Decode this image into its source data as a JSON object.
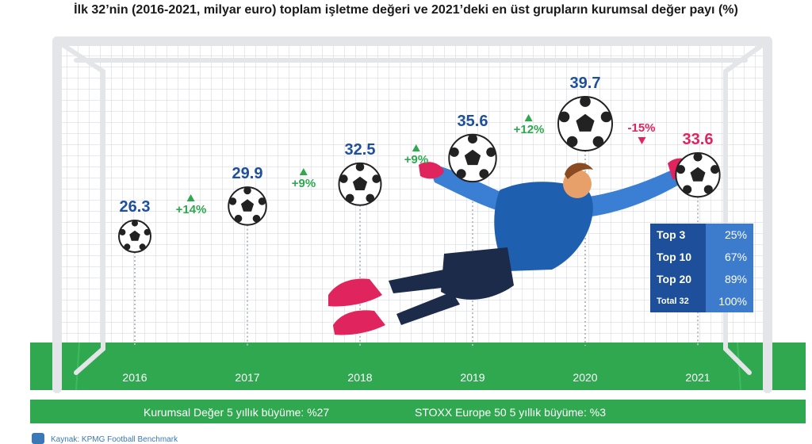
{
  "title": "İlk 32’nin (2016-2021, milyar euro) toplam işletme değeri ve 2021’deki en üst grupların kurumsal değer payı (%)",
  "chart_data": {
    "type": "scatter",
    "title": "İlk 32’nin (2016-2021, milyar euro) toplam işletme değeri ve 2021’deki en üst grupların kurumsal değer payı (%)",
    "categories": [
      "2016",
      "2017",
      "2018",
      "2019",
      "2020",
      "2021"
    ],
    "values": [
      26.3,
      29.9,
      32.5,
      35.6,
      39.7,
      33.6
    ],
    "value_labels": [
      "26.3",
      "29.9",
      "32.5",
      "35.6",
      "39.7",
      "33.6"
    ],
    "changes": [
      "+14%",
      "+9%",
      "+9%",
      "+12%",
      "-15%"
    ],
    "change_direction": [
      "up",
      "up",
      "up",
      "up",
      "down"
    ],
    "colors": {
      "value": "#1e4f9a",
      "value_last": "#e0245e",
      "up": "#2fa84f",
      "down": "#e0245e",
      "grass": "#2fa84f"
    }
  },
  "share_table": [
    {
      "label": "Top 3",
      "value": "25%"
    },
    {
      "label": "Top 10",
      "value": "67%"
    },
    {
      "label": "Top 20",
      "value": "89%"
    },
    {
      "label": "Total 32",
      "value": "100%"
    }
  ],
  "footer": {
    "growth_enterprise": "Kurumsal Değer 5 yıllık büyüme: %27",
    "growth_stoxx": "STOXX Europe 50 5 yıllık büyüme: %3",
    "source": "Kaynak: KPMG Football Benchmark"
  }
}
